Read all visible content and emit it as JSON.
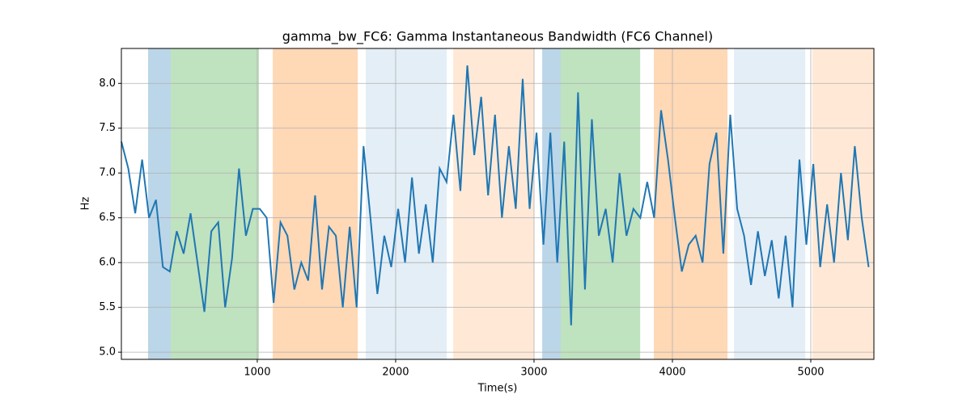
{
  "chart_data": {
    "type": "line",
    "title": "gamma_bw_FC6: Gamma Instantaneous Bandwidth (FC6 Channel)",
    "xlabel": "Time(s)",
    "ylabel": "Hz",
    "xlim": [
      18,
      5456
    ],
    "ylim": [
      4.92,
      8.39
    ],
    "xticks": [
      1000,
      2000,
      3000,
      4000,
      5000
    ],
    "yticks": [
      {
        "value": 5,
        "label": "5.0"
      },
      5.5,
      {
        "value": 6,
        "label": "6.0"
      },
      6.5,
      {
        "value": 7,
        "label": "7.0"
      },
      7.5,
      {
        "value": 8,
        "label": "8.0"
      }
    ],
    "grid": true,
    "spans": [
      {
        "start": 211,
        "end": 375,
        "color": "#1f77b4",
        "alpha": 0.3
      },
      {
        "start": 375,
        "end": 1012,
        "color": "#2ca02c",
        "alpha": 0.3
      },
      {
        "start": 1112,
        "end": 1726,
        "color": "#ff7f0e",
        "alpha": 0.3
      },
      {
        "start": 1784,
        "end": 2369,
        "color": "#1f77b4",
        "alpha": 0.12
      },
      {
        "start": 2416,
        "end": 3000,
        "color": "#ff7f0e",
        "alpha": 0.17
      },
      {
        "start": 3059,
        "end": 3193,
        "color": "#1f77b4",
        "alpha": 0.3
      },
      {
        "start": 3193,
        "end": 3767,
        "color": "#2ca02c",
        "alpha": 0.3
      },
      {
        "start": 3866,
        "end": 4398,
        "color": "#ff7f0e",
        "alpha": 0.3
      },
      {
        "start": 4445,
        "end": 4960,
        "color": "#1f77b4",
        "alpha": 0.12
      },
      {
        "start": 5012,
        "end": 5456,
        "color": "#ff7f0e",
        "alpha": 0.17
      }
    ],
    "x": [
      18,
      68,
      118,
      168,
      218,
      268,
      318,
      368,
      418,
      468,
      518,
      568,
      618,
      668,
      718,
      768,
      818,
      868,
      918,
      968,
      1018,
      1068,
      1118,
      1168,
      1218,
      1268,
      1318,
      1368,
      1418,
      1468,
      1518,
      1568,
      1618,
      1668,
      1718,
      1768,
      1818,
      1868,
      1918,
      1968,
      2018,
      2068,
      2118,
      2168,
      2218,
      2268,
      2318,
      2368,
      2418,
      2468,
      2518,
      2568,
      2618,
      2668,
      2718,
      2768,
      2818,
      2868,
      2918,
      2968,
      3018,
      3068,
      3118,
      3168,
      3218,
      3268,
      3318,
      3368,
      3418,
      3468,
      3518,
      3568,
      3618,
      3668,
      3718,
      3768,
      3818,
      3868,
      3918,
      3968,
      4018,
      4068,
      4118,
      4168,
      4218,
      4268,
      4318,
      4368,
      4418,
      4468,
      4518,
      4568,
      4618,
      4668,
      4718,
      4768,
      4818,
      4868,
      4918,
      4968,
      5018,
      5068,
      5118,
      5168,
      5218,
      5268,
      5318,
      5368,
      5418
    ],
    "series": [
      {
        "color": "#1f77b4",
        "values": [
          7.35,
          7.05,
          6.55,
          7.15,
          6.5,
          6.7,
          5.95,
          5.9,
          6.35,
          6.1,
          6.55,
          6.0,
          5.45,
          6.35,
          6.45,
          5.5,
          6.05,
          7.05,
          6.3,
          6.6,
          6.6,
          6.5,
          5.55,
          6.45,
          6.3,
          5.7,
          6.0,
          5.8,
          6.75,
          5.7,
          6.4,
          6.3,
          5.5,
          6.4,
          5.5,
          7.3,
          6.5,
          5.65,
          6.3,
          5.95,
          6.6,
          6.0,
          6.95,
          6.1,
          6.65,
          6.0,
          7.05,
          6.9,
          7.65,
          6.8,
          8.2,
          7.2,
          7.85,
          6.75,
          7.65,
          6.5,
          7.3,
          6.6,
          8.05,
          6.6,
          7.45,
          6.2,
          7.45,
          6.0,
          7.35,
          5.3,
          7.9,
          5.7,
          7.6,
          6.3,
          6.6,
          6.0,
          7.0,
          6.3,
          6.6,
          6.5,
          6.9,
          6.5,
          7.7,
          7.15,
          6.5,
          5.9,
          6.2,
          6.3,
          6.0,
          7.1,
          7.45,
          6.1,
          7.65,
          6.6,
          6.3,
          5.75,
          6.35,
          5.85,
          6.25,
          5.6,
          6.3,
          5.5,
          7.15,
          6.2,
          7.1,
          5.95,
          6.65,
          6.0,
          7.0,
          6.25,
          7.3,
          6.5,
          5.95
        ]
      }
    ]
  }
}
